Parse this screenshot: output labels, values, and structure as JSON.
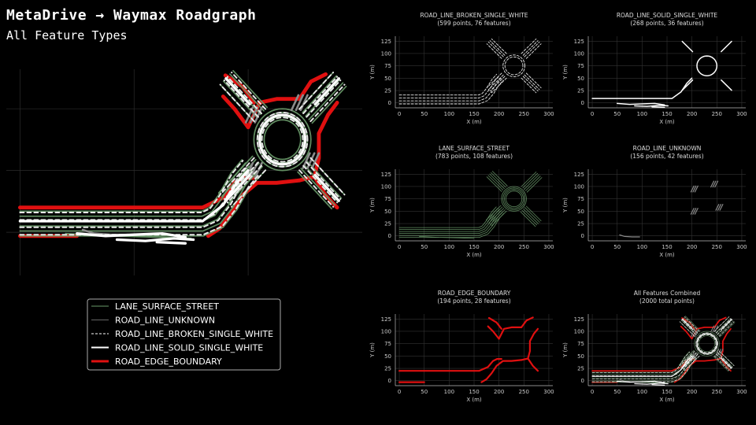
{
  "header": {
    "title": "MetaDrive → Waymax Roadgraph",
    "subtitle": "All Feature Types"
  },
  "legend": {
    "entries": [
      {
        "label": "LANE_SURFACE_STREET",
        "color": "#6a9a6a",
        "style": "solid-thin"
      },
      {
        "label": "ROAD_LINE_UNKNOWN",
        "color": "#666666",
        "style": "solid-thin"
      },
      {
        "label": "ROAD_LINE_BROKEN_SINGLE_WHITE",
        "color": "#ffffff",
        "style": "dashed"
      },
      {
        "label": "ROAD_LINE_SOLID_SINGLE_WHITE",
        "color": "#ffffff",
        "style": "solid-thick"
      },
      {
        "label": "ROAD_EDGE_BOUNDARY",
        "color": "#e01010",
        "style": "solid-thicker"
      }
    ]
  },
  "chart_data": [
    {
      "type": "line",
      "panel": "main",
      "title": "",
      "xlabel": "",
      "ylabel": "",
      "note_series": [
        "LANE_SURFACE_STREET",
        "ROAD_LINE_UNKNOWN",
        "ROAD_LINE_BROKEN_SINGLE_WHITE",
        "ROAD_LINE_SOLID_SINGLE_WHITE",
        "ROAD_EDGE_BOUNDARY"
      ],
      "grid": true
    },
    {
      "type": "line",
      "panel": "broken",
      "title": "ROAD_LINE_BROKEN_SINGLE_WHITE",
      "subtitle": "(599 points, 76 features)",
      "xlabel": "X (m)",
      "ylabel": "Y (m)",
      "xlim": [
        -8,
        308
      ],
      "ylim": [
        -10,
        135
      ],
      "xticks": [
        0,
        50,
        100,
        150,
        200,
        250,
        300
      ],
      "yticks": [
        0,
        25,
        50,
        75,
        100,
        125
      ],
      "grid": true,
      "color": "#ffffff"
    },
    {
      "type": "line",
      "panel": "solid",
      "title": "ROAD_LINE_SOLID_SINGLE_WHITE",
      "subtitle": "(268 points, 36 features)",
      "xlabel": "X (m)",
      "ylabel": "Y (m)",
      "xlim": [
        -8,
        308
      ],
      "ylim": [
        -10,
        135
      ],
      "xticks": [
        0,
        50,
        100,
        150,
        200,
        250,
        300
      ],
      "yticks": [
        0,
        25,
        50,
        75,
        100,
        125
      ],
      "grid": true,
      "color": "#ffffff"
    },
    {
      "type": "line",
      "panel": "lane",
      "title": "LANE_SURFACE_STREET",
      "subtitle": "(783 points, 108 features)",
      "xlabel": "X (m)",
      "ylabel": "Y (m)",
      "xlim": [
        -8,
        308
      ],
      "ylim": [
        -10,
        135
      ],
      "xticks": [
        0,
        50,
        100,
        150,
        200,
        250,
        300
      ],
      "yticks": [
        0,
        25,
        50,
        75,
        100,
        125
      ],
      "grid": true,
      "color": "#6a9a6a"
    },
    {
      "type": "line",
      "panel": "unknown",
      "title": "ROAD_LINE_UNKNOWN",
      "subtitle": "(156 points, 42 features)",
      "xlabel": "X (m)",
      "ylabel": "Y (m)",
      "xlim": [
        -8,
        308
      ],
      "ylim": [
        -10,
        135
      ],
      "xticks": [
        0,
        50,
        100,
        150,
        200,
        250,
        300
      ],
      "yticks": [
        0,
        25,
        50,
        75,
        100,
        125
      ],
      "grid": true,
      "color": "#8a8a8a"
    },
    {
      "type": "line",
      "panel": "edge",
      "title": "ROAD_EDGE_BOUNDARY",
      "subtitle": "(194 points, 28 features)",
      "xlabel": "X (m)",
      "ylabel": "Y (m)",
      "xlim": [
        -8,
        308
      ],
      "ylim": [
        -10,
        135
      ],
      "xticks": [
        0,
        50,
        100,
        150,
        200,
        250,
        300
      ],
      "yticks": [
        0,
        25,
        50,
        75,
        100,
        125
      ],
      "grid": true,
      "color": "#e01010"
    },
    {
      "type": "line",
      "panel": "combined",
      "title": "All Features Combined",
      "subtitle": "(2000 total points)",
      "xlabel": "X (m)",
      "ylabel": "Y (m)",
      "xlim": [
        -8,
        308
      ],
      "ylim": [
        -10,
        135
      ],
      "xticks": [
        0,
        50,
        100,
        150,
        200,
        250,
        300
      ],
      "yticks": [
        0,
        25,
        50,
        75,
        100,
        125
      ],
      "grid": true
    }
  ]
}
